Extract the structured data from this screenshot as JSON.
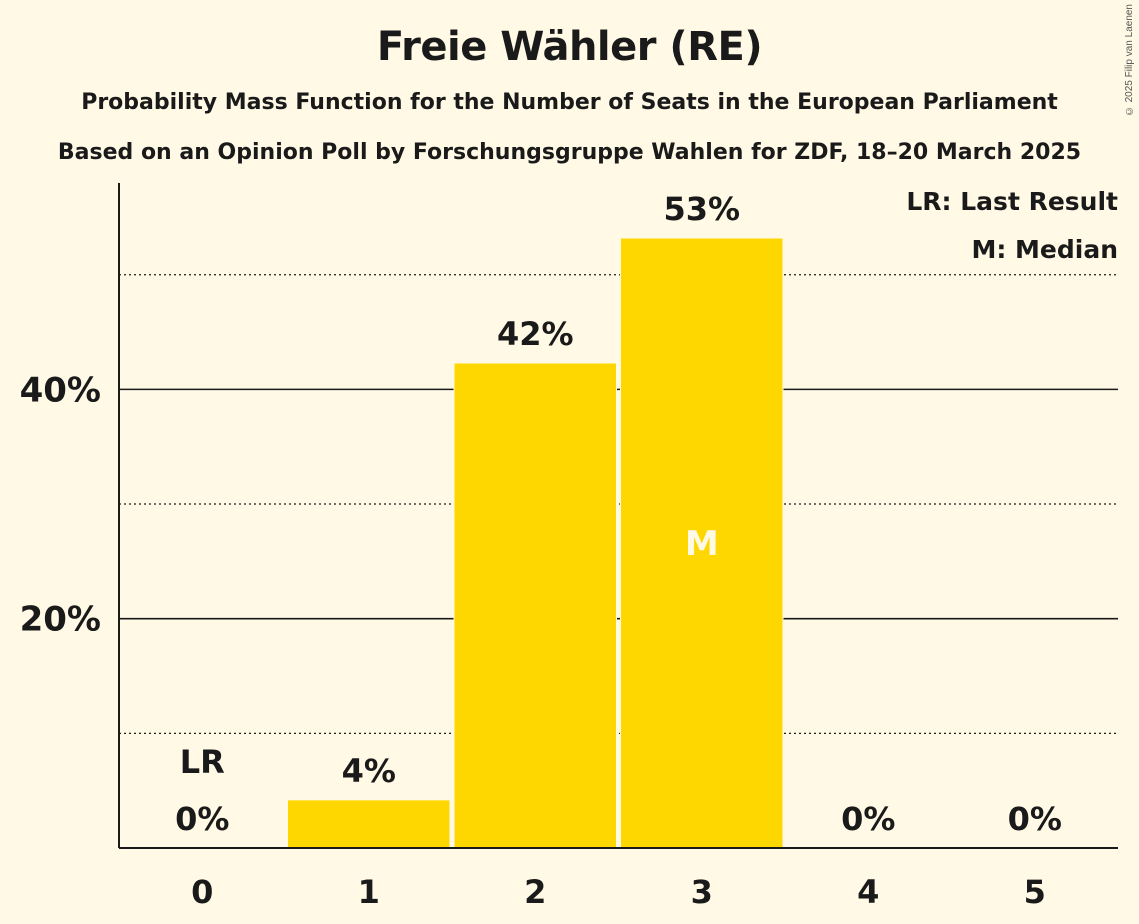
{
  "title": "Freie Wähler (RE)",
  "subtitle": "Probability Mass Function for the Number of Seats in the European Parliament",
  "subtitle2": "Based on an Opinion Poll by Forschungsgruppe Wahlen for ZDF, 18–20 March 2025",
  "copyright": "© 2025 Filip van Laenen",
  "legend": [
    "LR: Last Result",
    "M: Median"
  ],
  "colors": {
    "bar": "#ffd700",
    "background": "#fff9e6",
    "text": "#1a1a1a",
    "median_label": "#fff9e6"
  },
  "chart_data": {
    "type": "bar",
    "categories": [
      "0",
      "1",
      "2",
      "3",
      "4",
      "5"
    ],
    "values": [
      0,
      4.2,
      42.3,
      53.2,
      0,
      0
    ],
    "value_labels": [
      "0%",
      "4%",
      "42%",
      "53%",
      "0%",
      "0%"
    ],
    "ylim": [
      0,
      58
    ],
    "yticks": [
      {
        "value": 20,
        "label": "20%"
      },
      {
        "value": 40,
        "label": "40%"
      }
    ],
    "minor_gridlines": [
      10,
      30,
      50
    ],
    "last_result": {
      "category": "0",
      "label": "LR"
    },
    "median": {
      "category": "3",
      "label": "M"
    },
    "legend_position": "top-right"
  }
}
